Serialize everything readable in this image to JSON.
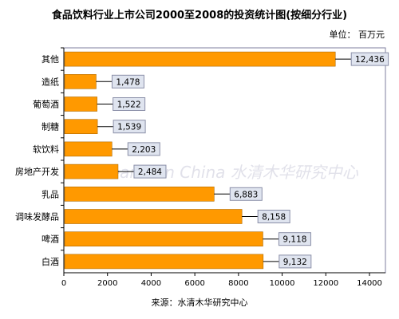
{
  "chart_data": {
    "type": "bar",
    "orientation": "horizontal",
    "title": "食品饮料行业上市公司2000至2008的投资统计图(按细分行业)",
    "unit_label": "单位： 百万元",
    "source": "来源：水清木华研究中心",
    "watermark": "Research in China 水清木华研究中心",
    "categories": [
      "其他",
      "造纸",
      "葡萄酒",
      "制糖",
      "软饮料",
      "房地产开发",
      "乳品",
      "调味发酵品",
      "啤酒",
      "白酒"
    ],
    "values": [
      12436,
      1478,
      1522,
      1539,
      2203,
      2484,
      6883,
      8158,
      9118,
      9132
    ],
    "data_labels": [
      "12,436",
      "1,478",
      "1,522",
      "1,539",
      "2,203",
      "2,484",
      "6,883",
      "8,158",
      "9,118",
      "9,132"
    ],
    "xlim": [
      0,
      14000
    ],
    "x_ticks": [
      "0",
      "2000",
      "4000",
      "6000",
      "8000",
      "10000",
      "12000",
      "14000"
    ],
    "bar_color": "#ff9900",
    "label_box_color": "#dfe4ef"
  }
}
